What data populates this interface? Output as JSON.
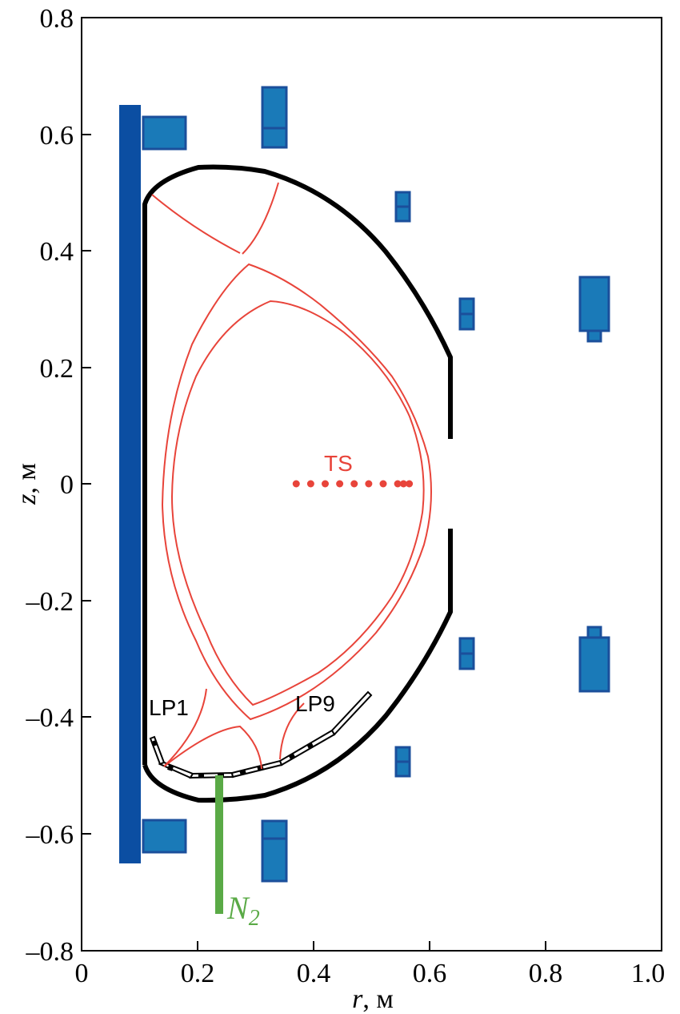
{
  "colors": {
    "central_solenoid": "#0b4ea2",
    "coil_fill": "#1a7ab8",
    "coil_stroke": "#1b4f9b",
    "vessel": "#000000",
    "separatrix": "#e8443a",
    "ts_points": "#e8443a",
    "gas_puff": "#5aaa46"
  },
  "axes": {
    "x_ticks": [
      "0",
      "0.2",
      "0.4",
      "0.6",
      "0.8",
      "1.0"
    ],
    "y_ticks": [
      "0.8",
      "0.6",
      "0.4",
      "0.2",
      "0",
      "–0.2",
      "–0.4",
      "–0.6",
      "–0.8"
    ],
    "xlim": [
      0,
      1.0
    ],
    "ylim": [
      -0.8,
      0.8
    ]
  },
  "labels": {
    "x_title_var": "r",
    "x_title_unit": ", м",
    "y_title_var": "z",
    "y_title_unit": ", м",
    "ts": "TS",
    "lp1": "LP1",
    "lp9": "LP9",
    "n2_base": "N",
    "n2_sub": "2"
  },
  "ts_points_r": [
    0.37,
    0.395,
    0.42,
    0.445,
    0.47,
    0.495,
    0.52,
    0.545,
    0.555,
    0.565
  ]
}
